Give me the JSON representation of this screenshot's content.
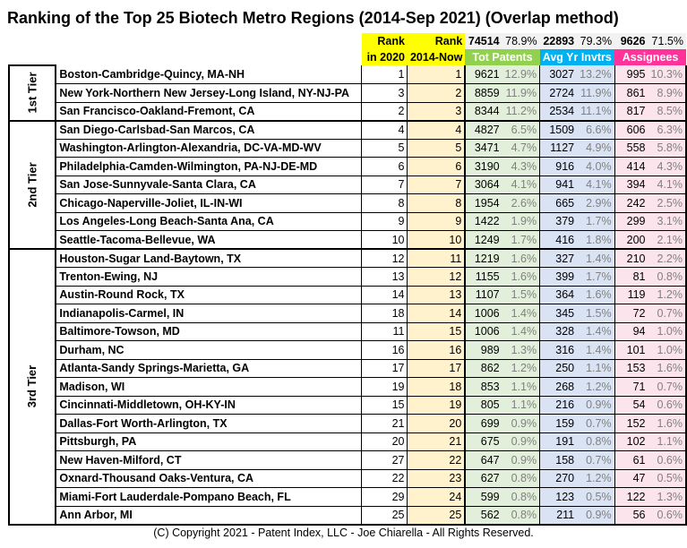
{
  "title": "Ranking of the Top 25 Biotech Metro Regions (2014-Sep 2021) (Overlap method)",
  "header": {
    "rank_label": "Rank",
    "rank_2020_label": "in 2020",
    "rank_now_label": "2014-Now",
    "patents_total": "74514",
    "patents_pct": "78.9%",
    "patents_label": "Tot Patents",
    "inventors_total": "22893",
    "inventors_pct": "79.3%",
    "inventors_label": "Avg Yr Invtrs",
    "assignees_total": "9626",
    "assignees_pct": "71.5%",
    "assignees_label": "Assignees"
  },
  "tiers": [
    "1st Tier",
    "2nd Tier",
    "3rd Tier"
  ],
  "colors": {
    "rank_now_bg": "#fff2cc",
    "patents_bg": "#e2efda",
    "inventors_bg": "#dae3f3",
    "assignees_bg": "#fce4ec",
    "patents_header": "#92d050",
    "inventors_header": "#00b0f0",
    "assignees_header": "#ff3399",
    "rank_header": "#ffff00"
  },
  "rows": [
    {
      "region": "Boston-Cambridge-Quincy, MA-NH",
      "r2020": "1",
      "rnow": "1",
      "pat": "9621",
      "patp": "12.9%",
      "inv": "3027",
      "invp": "13.2%",
      "asg": "995",
      "asgp": "10.3%"
    },
    {
      "region": "New York-Northern New Jersey-Long Island, NY-NJ-PA",
      "r2020": "3",
      "rnow": "2",
      "pat": "8859",
      "patp": "11.9%",
      "inv": "2724",
      "invp": "11.9%",
      "asg": "861",
      "asgp": "8.9%"
    },
    {
      "region": "San Francisco-Oakland-Fremont, CA",
      "r2020": "2",
      "rnow": "3",
      "pat": "8344",
      "patp": "11.2%",
      "inv": "2534",
      "invp": "11.1%",
      "asg": "817",
      "asgp": "8.5%"
    },
    {
      "region": "San Diego-Carlsbad-San Marcos, CA",
      "r2020": "4",
      "rnow": "4",
      "pat": "4827",
      "patp": "6.5%",
      "inv": "1509",
      "invp": "6.6%",
      "asg": "606",
      "asgp": "6.3%"
    },
    {
      "region": "Washington-Arlington-Alexandria, DC-VA-MD-WV",
      "r2020": "5",
      "rnow": "5",
      "pat": "3471",
      "patp": "4.7%",
      "inv": "1127",
      "invp": "4.9%",
      "asg": "558",
      "asgp": "5.8%"
    },
    {
      "region": "Philadelphia-Camden-Wilmington, PA-NJ-DE-MD",
      "r2020": "6",
      "rnow": "6",
      "pat": "3190",
      "patp": "4.3%",
      "inv": "916",
      "invp": "4.0%",
      "asg": "414",
      "asgp": "4.3%"
    },
    {
      "region": "San Jose-Sunnyvale-Santa Clara, CA",
      "r2020": "7",
      "rnow": "7",
      "pat": "3064",
      "patp": "4.1%",
      "inv": "941",
      "invp": "4.1%",
      "asg": "394",
      "asgp": "4.1%"
    },
    {
      "region": "Chicago-Naperville-Joliet, IL-IN-WI",
      "r2020": "8",
      "rnow": "8",
      "pat": "1954",
      "patp": "2.6%",
      "inv": "665",
      "invp": "2.9%",
      "asg": "242",
      "asgp": "2.5%"
    },
    {
      "region": "Los Angeles-Long Beach-Santa Ana, CA",
      "r2020": "9",
      "rnow": "9",
      "pat": "1422",
      "patp": "1.9%",
      "inv": "379",
      "invp": "1.7%",
      "asg": "299",
      "asgp": "3.1%"
    },
    {
      "region": "Seattle-Tacoma-Bellevue, WA",
      "r2020": "10",
      "rnow": "10",
      "pat": "1249",
      "patp": "1.7%",
      "inv": "416",
      "invp": "1.8%",
      "asg": "200",
      "asgp": "2.1%"
    },
    {
      "region": "Houston-Sugar Land-Baytown, TX",
      "r2020": "12",
      "rnow": "11",
      "pat": "1219",
      "patp": "1.6%",
      "inv": "327",
      "invp": "1.4%",
      "asg": "210",
      "asgp": "2.2%"
    },
    {
      "region": "Trenton-Ewing, NJ",
      "r2020": "13",
      "rnow": "12",
      "pat": "1155",
      "patp": "1.6%",
      "inv": "399",
      "invp": "1.7%",
      "asg": "81",
      "asgp": "0.8%"
    },
    {
      "region": "Austin-Round Rock, TX",
      "r2020": "14",
      "rnow": "13",
      "pat": "1107",
      "patp": "1.5%",
      "inv": "364",
      "invp": "1.6%",
      "asg": "119",
      "asgp": "1.2%"
    },
    {
      "region": "Indianapolis-Carmel, IN",
      "r2020": "18",
      "rnow": "14",
      "pat": "1006",
      "patp": "1.4%",
      "inv": "345",
      "invp": "1.5%",
      "asg": "72",
      "asgp": "0.7%"
    },
    {
      "region": "Baltimore-Towson, MD",
      "r2020": "11",
      "rnow": "15",
      "pat": "1006",
      "patp": "1.4%",
      "inv": "328",
      "invp": "1.4%",
      "asg": "94",
      "asgp": "1.0%"
    },
    {
      "region": "Durham, NC",
      "r2020": "16",
      "rnow": "16",
      "pat": "989",
      "patp": "1.3%",
      "inv": "316",
      "invp": "1.4%",
      "asg": "101",
      "asgp": "1.0%"
    },
    {
      "region": "Atlanta-Sandy Springs-Marietta, GA",
      "r2020": "17",
      "rnow": "17",
      "pat": "862",
      "patp": "1.2%",
      "inv": "250",
      "invp": "1.1%",
      "asg": "153",
      "asgp": "1.6%"
    },
    {
      "region": "Madison, WI",
      "r2020": "19",
      "rnow": "18",
      "pat": "853",
      "patp": "1.1%",
      "inv": "268",
      "invp": "1.2%",
      "asg": "71",
      "asgp": "0.7%"
    },
    {
      "region": "Cincinnati-Middletown, OH-KY-IN",
      "r2020": "15",
      "rnow": "19",
      "pat": "805",
      "patp": "1.1%",
      "inv": "216",
      "invp": "0.9%",
      "asg": "54",
      "asgp": "0.6%"
    },
    {
      "region": "Dallas-Fort Worth-Arlington, TX",
      "r2020": "21",
      "rnow": "20",
      "pat": "699",
      "patp": "0.9%",
      "inv": "159",
      "invp": "0.7%",
      "asg": "152",
      "asgp": "1.6%"
    },
    {
      "region": "Pittsburgh, PA",
      "r2020": "20",
      "rnow": "21",
      "pat": "675",
      "patp": "0.9%",
      "inv": "191",
      "invp": "0.8%",
      "asg": "102",
      "asgp": "1.1%"
    },
    {
      "region": "New Haven-Milford, CT",
      "r2020": "27",
      "rnow": "22",
      "pat": "647",
      "patp": "0.9%",
      "inv": "158",
      "invp": "0.7%",
      "asg": "61",
      "asgp": "0.6%"
    },
    {
      "region": "Oxnard-Thousand Oaks-Ventura, CA",
      "r2020": "22",
      "rnow": "23",
      "pat": "627",
      "patp": "0.8%",
      "inv": "270",
      "invp": "1.2%",
      "asg": "47",
      "asgp": "0.5%"
    },
    {
      "region": "Miami-Fort Lauderdale-Pompano Beach, FL",
      "r2020": "29",
      "rnow": "24",
      "pat": "599",
      "patp": "0.8%",
      "inv": "123",
      "invp": "0.5%",
      "asg": "122",
      "asgp": "1.3%"
    },
    {
      "region": "Ann Arbor, MI",
      "r2020": "25",
      "rnow": "25",
      "pat": "562",
      "patp": "0.8%",
      "inv": "211",
      "invp": "0.9%",
      "asg": "56",
      "asgp": "0.6%"
    }
  ],
  "footer": "(C) Copyright 2021 - Patent Index, LLC - Joe Chiarella - All Rights Reserved."
}
